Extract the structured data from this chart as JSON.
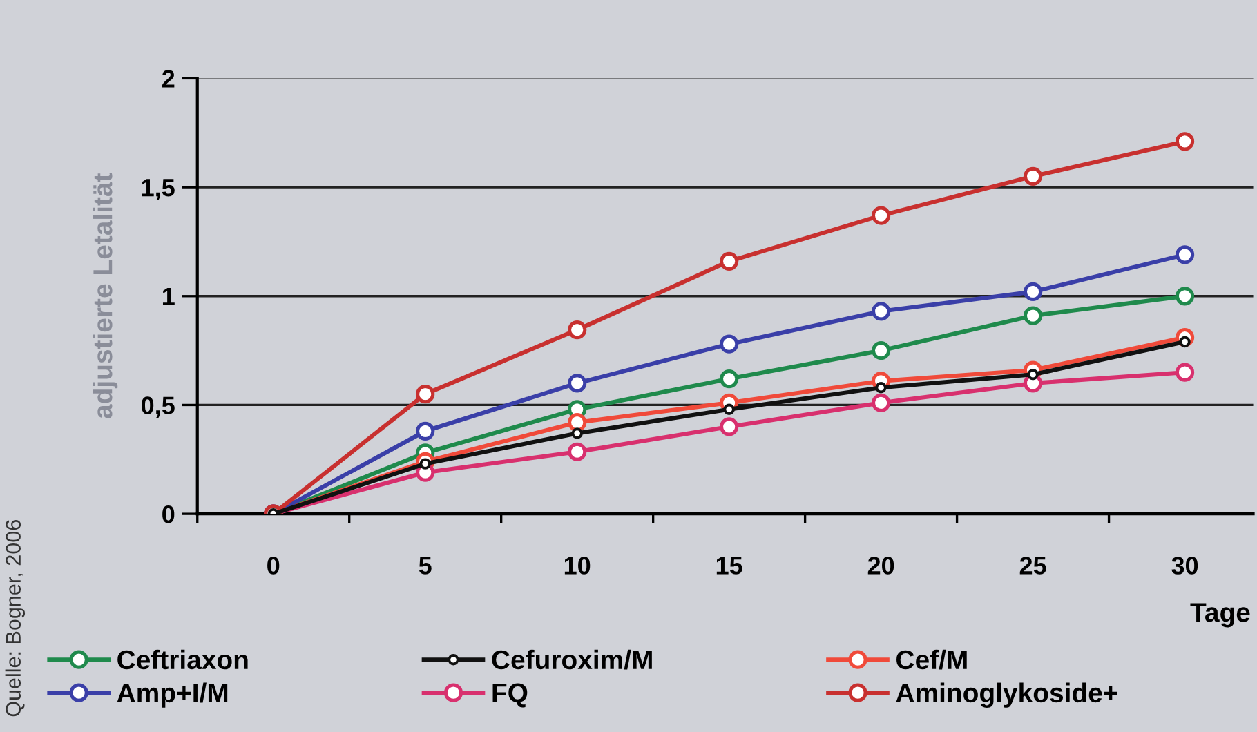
{
  "chart_data": {
    "type": "line",
    "xlabel": "Tage",
    "ylabel": "adjustierte Letalität",
    "categories": [
      "0",
      "5",
      "10",
      "15",
      "20",
      "25",
      "30"
    ],
    "series": [
      {
        "name": "Ceftriaxon",
        "color": "#1f8a4c",
        "values": [
          0,
          0.28,
          0.48,
          0.62,
          0.75,
          0.91,
          1.0
        ]
      },
      {
        "name": "Cefuroxim/M",
        "color": "#111111",
        "values": [
          0,
          0.23,
          0.37,
          0.48,
          0.58,
          0.64,
          0.79
        ]
      },
      {
        "name": "Cef/M",
        "color": "#f04a3a",
        "values": [
          0,
          0.24,
          0.42,
          0.51,
          0.61,
          0.66,
          0.81
        ]
      },
      {
        "name": "Amp+I/M",
        "color": "#3a3fa8",
        "values": [
          0,
          0.38,
          0.6,
          0.78,
          0.93,
          1.02,
          1.19
        ]
      },
      {
        "name": "FQ",
        "color": "#d8306e",
        "values": [
          0,
          0.19,
          0.285,
          0.4,
          0.51,
          0.6,
          0.65
        ]
      },
      {
        "name": "Aminoglykoside+",
        "color": "#c8302f",
        "values": [
          0,
          0.55,
          0.845,
          1.16,
          1.37,
          1.55,
          1.71
        ]
      }
    ],
    "ylim": [
      0,
      2
    ],
    "yticks": [
      0,
      {
        "value": 0.5,
        "label": "0,5"
      },
      1,
      {
        "value": 1.5,
        "label": "1,5"
      },
      2
    ],
    "grid": "y",
    "legend": "bottom",
    "marker": "circle",
    "line_style": "solid",
    "annotations": [
      "Quelle: Bogner, 2006"
    ]
  }
}
